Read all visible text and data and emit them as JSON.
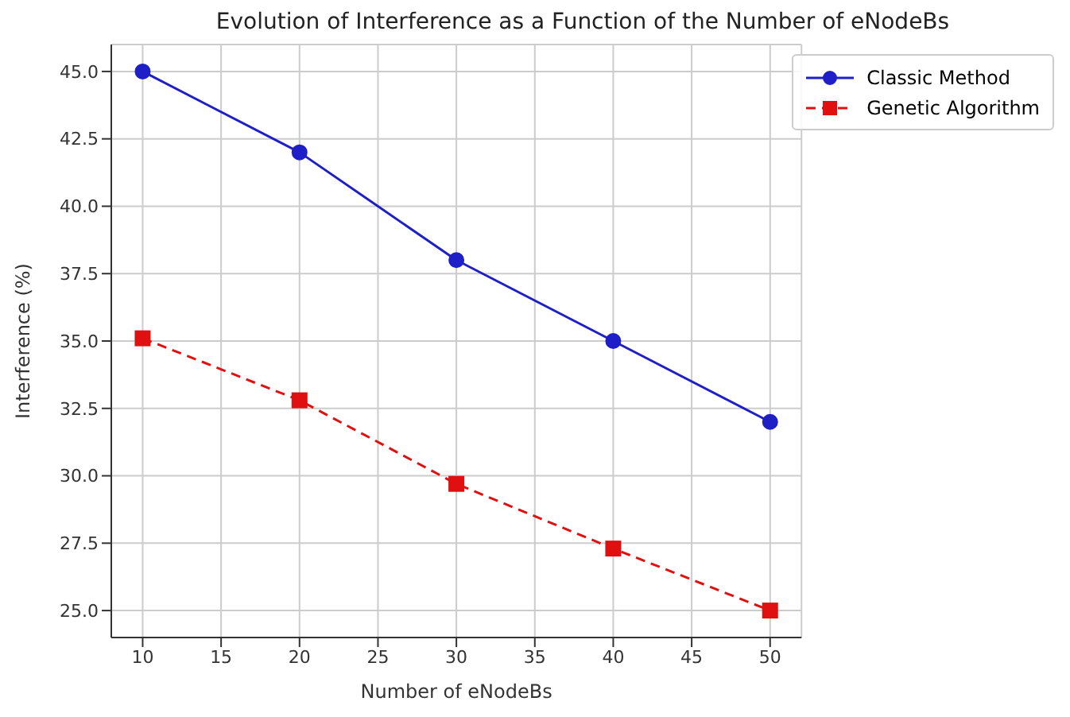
{
  "chart_data": {
    "type": "line",
    "title": "Evolution of Interference as a Function of the Number of eNodeBs",
    "xlabel": "Number of eNodeBs",
    "ylabel": "Interference (%)",
    "x": [
      10,
      20,
      30,
      40,
      50
    ],
    "series": [
      {
        "name": "Classic Method",
        "color": "#1f1fc8",
        "values": [
          45,
          42,
          38,
          35,
          32
        ],
        "marker": "circle",
        "line_style": "solid"
      },
      {
        "name": "Genetic Algorithm",
        "color": "#e01010",
        "values": [
          35.1,
          32.8,
          29.7,
          27.3,
          25.0
        ],
        "marker": "square",
        "line_style": "dashed"
      }
    ],
    "xlim": [
      8,
      52
    ],
    "xticks": [
      10,
      15,
      20,
      25,
      30,
      35,
      40,
      45,
      50
    ],
    "ylim": [
      24,
      46
    ],
    "yticks": [
      {
        "value": 25,
        "label": "25.0"
      },
      {
        "value": 27.5,
        "label": "27.5"
      },
      {
        "value": 30,
        "label": "30.0"
      },
      {
        "value": 32.5,
        "label": "32.5"
      },
      {
        "value": 35,
        "label": "35.0"
      },
      {
        "value": 37.5,
        "label": "37.5"
      },
      {
        "value": 40,
        "label": "40.0"
      },
      {
        "value": 42.5,
        "label": "42.5"
      },
      {
        "value": 45,
        "label": "45.0"
      }
    ],
    "grid": true,
    "legend": "top right"
  }
}
